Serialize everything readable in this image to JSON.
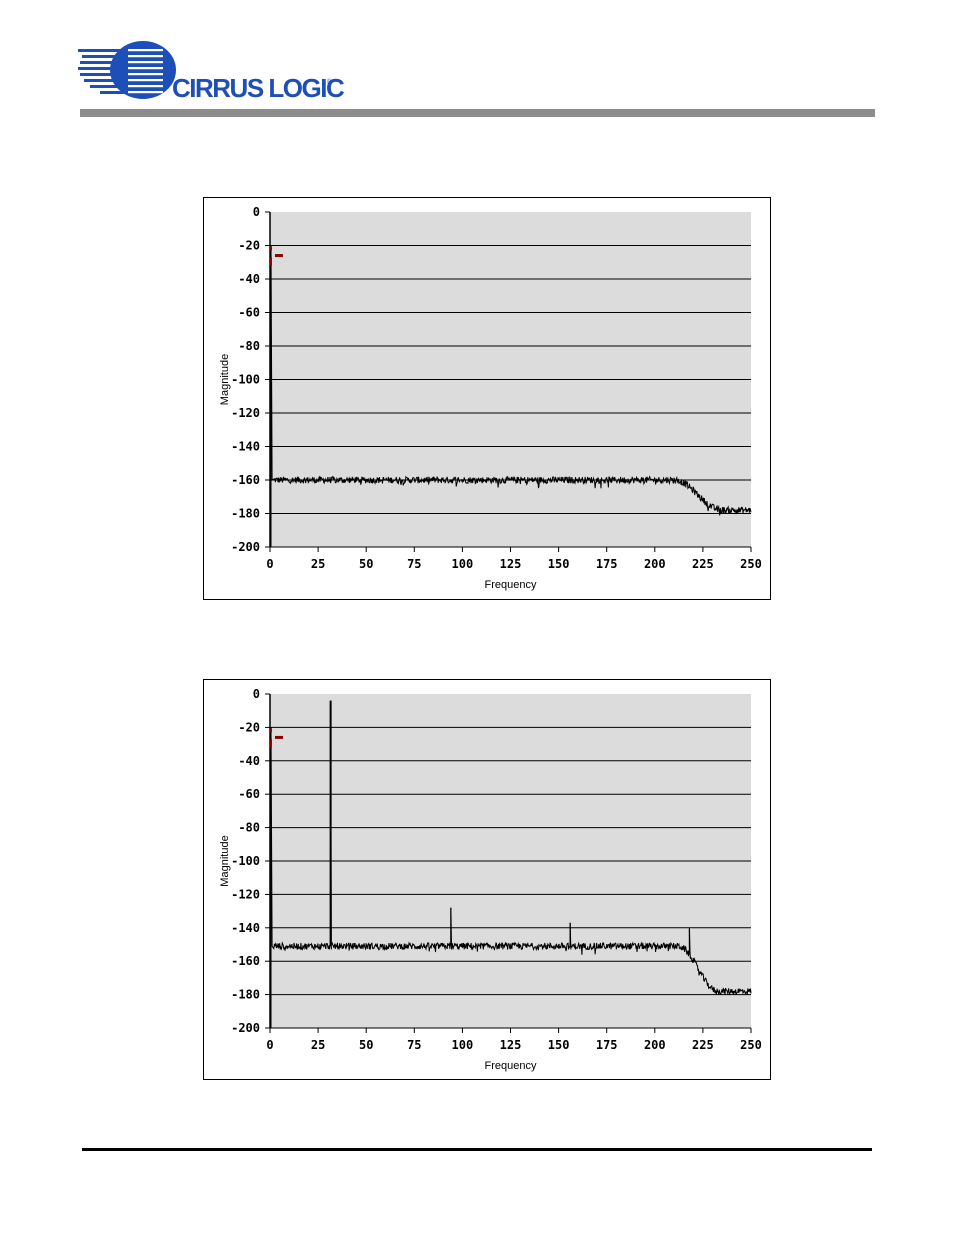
{
  "header": {
    "logo_text": "CIRRUS LOGIC",
    "logo_mark": "®"
  },
  "colors": {
    "plot_bg": "#dcdcdc",
    "grid": "#000000",
    "trace": "#000000",
    "marker": "#8b0000",
    "header_bar": "#8c8c8c"
  },
  "chart_data": [
    {
      "type": "line",
      "title": "",
      "xlabel": "Frequency",
      "ylabel": "Magnitude",
      "xlim": [
        0,
        250
      ],
      "ylim": [
        -200,
        0
      ],
      "xticks": [
        "0",
        "25",
        "50",
        "75",
        "100",
        "125",
        "150",
        "175",
        "200",
        "225",
        "250"
      ],
      "yticks": [
        "0",
        "-20",
        "-40",
        "-60",
        "-80",
        "-100",
        "-120",
        "-140",
        "-160",
        "-180",
        "-200"
      ],
      "grid": true,
      "noise_floor_db": -160,
      "rolloff": {
        "start_hz": 210,
        "end_hz": 235,
        "end_db": -178
      },
      "spikes": [
        {
          "x": 0.5,
          "y": -20
        }
      ],
      "marker": {
        "x": 0.5,
        "y": -26
      }
    },
    {
      "type": "line",
      "title": "",
      "xlabel": "Frequency",
      "ylabel": "Magnitude",
      "xlim": [
        0,
        250
      ],
      "ylim": [
        -200,
        0
      ],
      "xticks": [
        "0",
        "25",
        "50",
        "75",
        "100",
        "125",
        "150",
        "175",
        "200",
        "225",
        "250"
      ],
      "yticks": [
        "0",
        "-20",
        "-40",
        "-60",
        "-80",
        "-100",
        "-120",
        "-140",
        "-160",
        "-180",
        "-200"
      ],
      "grid": true,
      "noise_floor_db": -151,
      "rolloff": {
        "start_hz": 212,
        "end_hz": 233,
        "end_db": -178
      },
      "spikes": [
        {
          "x": 0.5,
          "y": -20
        },
        {
          "x": 31.5,
          "y": -4
        },
        {
          "x": 94,
          "y": -128
        },
        {
          "x": 156,
          "y": -137
        },
        {
          "x": 218,
          "y": -140
        }
      ],
      "marker": {
        "x": 0.5,
        "y": -26
      }
    }
  ]
}
